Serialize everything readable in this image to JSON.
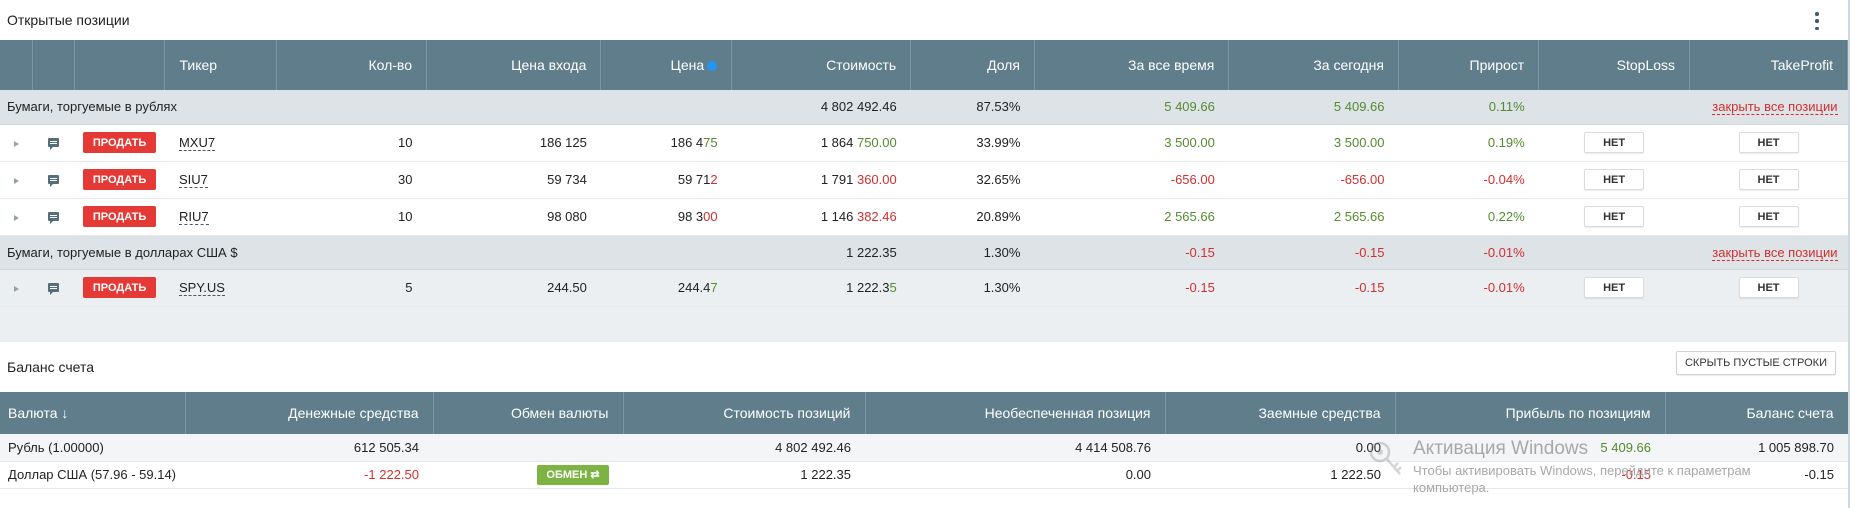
{
  "positions": {
    "title": "Открытые позиции",
    "columns": [
      "Тикер",
      "Кол-во",
      "Цена входа",
      "Цена",
      "Стоимость",
      "Доля",
      "За все время",
      "За сегодня",
      "Прирост",
      "StopLoss",
      "TakeProfit"
    ],
    "sell_label": "ПРОДАТЬ",
    "net_label": "НЕТ",
    "close_all_label": "закрыть все позиции",
    "groups": [
      {
        "label": "Бумаги, торгуемые в рублях",
        "value": "4 802 492.46",
        "share": "87.53%",
        "all_time": "5 409.66",
        "today": "5 409.66",
        "growth": "0.11%",
        "rows": [
          {
            "ticker": "MXU7",
            "qty": "10",
            "entry": "186 125",
            "price_a": "186 4",
            "price_b": "75",
            "value_a": "1 864 ",
            "value_b": "750.00",
            "share": "33.99%",
            "all_time": "3 500.00",
            "today": "3 500.00",
            "growth": "0.19%"
          },
          {
            "ticker": "SIU7",
            "qty": "30",
            "entry": "59 734",
            "price_a": "59 71",
            "price_b": "2",
            "value_a": "1 791 ",
            "value_b": "360.00",
            "share": "32.65%",
            "all_time": "-656.00",
            "today": "-656.00",
            "growth": "-0.04%"
          },
          {
            "ticker": "RIU7",
            "qty": "10",
            "entry": "98 080",
            "price_a": "98 3",
            "price_b": "00",
            "value_a": "1 146 ",
            "value_b": "382.46",
            "share": "20.89%",
            "all_time": "2 565.66",
            "today": "2 565.66",
            "growth": "0.22%"
          }
        ]
      },
      {
        "label": "Бумаги, торгуемые в долларах США $",
        "value": "1 222.35",
        "share": "1.30%",
        "all_time": "-0.15",
        "today": "-0.15",
        "growth": "-0.01%",
        "rows": [
          {
            "ticker": "SPY.US",
            "qty": "5",
            "entry": "244.50",
            "price_a": "244.4",
            "price_b": "7",
            "value_a": "1 222.3",
            "value_b": "5",
            "share": "1.30%",
            "all_time": "-0.15",
            "today": "-0.15",
            "growth": "-0.01%"
          }
        ]
      }
    ]
  },
  "balance": {
    "title": "Баланс счета",
    "hide_label": "СКРЫТЬ ПУСТЫЕ СТРОКИ",
    "columns": [
      "Валюта ↓",
      "Денежные средства",
      "Обмен валюты",
      "Стоимость позиций",
      "Необеспеченная позиция",
      "Заемные средства",
      "Прибыль по позициям",
      "Баланс счета"
    ],
    "exchange_label": "ОБМЕН ⇄",
    "rows": [
      {
        "currency": "Рубль (1.00000)",
        "cash": "612 505.34",
        "positions": "4 802 492.46",
        "unsecured": "4 414 508.76",
        "borrowed": "0.00",
        "profit": "5 409.66",
        "balance": "1 005 898.70"
      },
      {
        "currency": "Доллар США (57.96 - 59.14)",
        "cash": "-1 222.50",
        "positions": "1 222.35",
        "unsecured": "0.00",
        "borrowed": "1 222.50",
        "profit": "-0.15",
        "balance": "-0.15"
      }
    ]
  },
  "watermark": {
    "line1": "Активация Windows",
    "line2": "Чтобы активировать Windows, перейдите к параметрам",
    "line3": "компьютера."
  },
  "colors": {
    "header": "#607d8b",
    "group": "#dde3e7",
    "sell": "#e53935",
    "positive": "#558b2f",
    "negative": "#d32f2f",
    "exchange": "#7cb342"
  }
}
